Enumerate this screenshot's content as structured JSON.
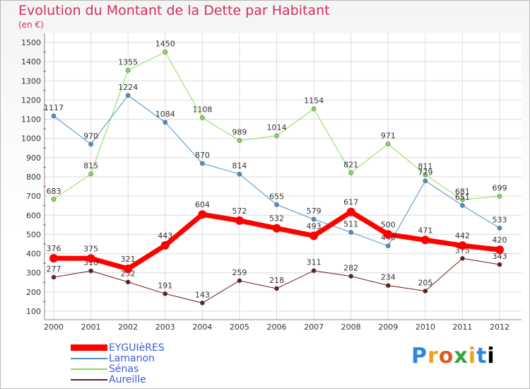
{
  "header": {
    "title": "Evolution du Montant de la Dette par Habitant",
    "subtitle": "(en €)"
  },
  "logo": {
    "letters": [
      "P",
      "r",
      "o",
      "x",
      "i",
      "t",
      "i"
    ]
  },
  "chart_data": {
    "type": "line",
    "title": "Evolution du Montant de la Dette par Habitant",
    "ylabel": "(en €)",
    "xlabel": "",
    "categories": [
      "2000",
      "2001",
      "2002",
      "2003",
      "2004",
      "2005",
      "2006",
      "2007",
      "2008",
      "2009",
      "2010",
      "2011",
      "2012"
    ],
    "yticks": [
      100,
      200,
      300,
      400,
      500,
      600,
      700,
      800,
      900,
      1000,
      1100,
      1200,
      1300,
      1400,
      1500
    ],
    "ylim": [
      100,
      1500
    ],
    "grid": true,
    "legend_position": "bottom-left",
    "series": [
      {
        "name": "EYGUIèRES",
        "color": "#ff0000",
        "width": 7,
        "values": [
          376,
          375,
          321,
          443,
          604,
          572,
          532,
          493,
          617,
          500,
          471,
          442,
          420
        ]
      },
      {
        "name": "Lamanon",
        "color": "#4a90d0",
        "width": 1,
        "values": [
          1117,
          970,
          1224,
          1084,
          870,
          814,
          655,
          579,
          511,
          440,
          779,
          651,
          533
        ]
      },
      {
        "name": "Sénas",
        "color": "#88dd55",
        "width": 1,
        "values": [
          683,
          815,
          1355,
          1450,
          1108,
          989,
          1014,
          1154,
          821,
          971,
          811,
          681,
          699
        ]
      },
      {
        "name": "Aureille",
        "color": "#6b1a1a",
        "width": 1,
        "values": [
          277,
          310,
          252,
          191,
          143,
          259,
          218,
          311,
          282,
          234,
          205,
          375,
          343
        ]
      }
    ]
  }
}
